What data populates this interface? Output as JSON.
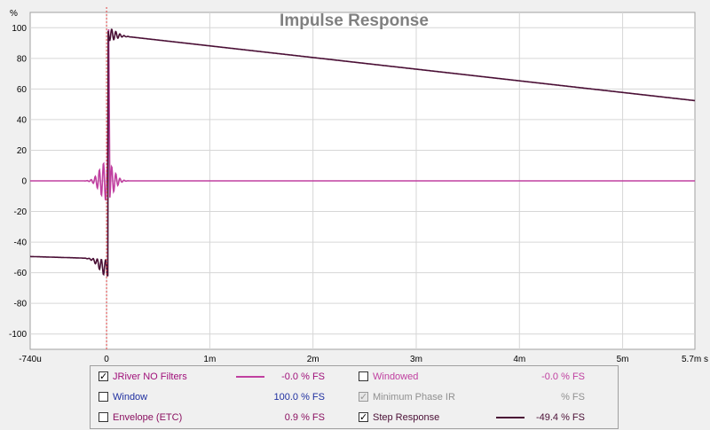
{
  "chart_data": {
    "type": "line",
    "title": "Impulse Response",
    "xlabel": "",
    "ylabel": "%",
    "xlim": [
      -0.74,
      5.7
    ],
    "ylim": [
      -110,
      110
    ],
    "x_unit_note": "ms",
    "x_ticks": [
      {
        "value": -0.74,
        "label": "-740u"
      },
      {
        "value": 0,
        "label": "0"
      },
      {
        "value": 1,
        "label": "1m"
      },
      {
        "value": 2,
        "label": "2m"
      },
      {
        "value": 3,
        "label": "3m"
      },
      {
        "value": 4,
        "label": "4m"
      },
      {
        "value": 5,
        "label": "5m"
      },
      {
        "value": 5.7,
        "label": "5.7m s"
      }
    ],
    "y_ticks": [
      100,
      80,
      60,
      40,
      20,
      0,
      -20,
      -40,
      -60,
      -80,
      -100
    ],
    "grid": true,
    "legend_position": "bottom",
    "cursor_marker_x": 0,
    "series": [
      {
        "name": "JRiver NO Filters",
        "color": "#c040a0",
        "kind": "impulse",
        "description_points": [
          [
            -0.74,
            0
          ],
          [
            -0.25,
            0
          ],
          [
            -0.04,
            14
          ],
          [
            0,
            -13
          ],
          [
            0.02,
            99
          ],
          [
            0.04,
            -12
          ],
          [
            0.2,
            0
          ],
          [
            5.7,
            0
          ]
        ]
      },
      {
        "name": "Step Response",
        "color": "#4a0f35",
        "kind": "step",
        "points": [
          [
            -0.74,
            -49.4
          ],
          [
            -0.3,
            -50
          ],
          [
            -0.1,
            -52
          ],
          [
            -0.03,
            -62
          ],
          [
            0,
            -50
          ],
          [
            0.02,
            100
          ],
          [
            0.05,
            96
          ],
          [
            0.1,
            100
          ],
          [
            0.25,
            94
          ],
          [
            1,
            87.6
          ],
          [
            2,
            79.2
          ],
          [
            3,
            71.3
          ],
          [
            4,
            64.1
          ],
          [
            5,
            57.1
          ],
          [
            5.7,
            52.4
          ]
        ]
      }
    ],
    "cursor_color": "#e04040"
  },
  "legend": {
    "items": [
      {
        "label": "JRiver NO Filters",
        "checked": true,
        "value": "-0.0 % FS",
        "label_color": "#a0107a",
        "value_color": "#a0107a",
        "swatch": "#c040a0"
      },
      {
        "label": "Window",
        "checked": false,
        "value": "100.0 % FS",
        "label_color": "#1f2fa0",
        "value_color": "#1f2fa0",
        "swatch": ""
      },
      {
        "label": "Envelope (ETC)",
        "checked": false,
        "value": "0.9 % FS",
        "label_color": "#8a1060",
        "value_color": "#8a1060",
        "swatch": ""
      },
      {
        "label": "Windowed",
        "checked": false,
        "value": "-0.0 % FS",
        "label_color": "#c040a0",
        "value_color": "#c040a0",
        "swatch": ""
      },
      {
        "label": "Minimum Phase IR",
        "checked": true,
        "disabled": true,
        "value": "% FS",
        "label_color": "#909090",
        "value_color": "#909090",
        "swatch": ""
      },
      {
        "label": "Step Response",
        "checked": true,
        "value": "-49.4 % FS",
        "label_color": "#4a0f35",
        "value_color": "#4a0f35",
        "swatch": "#4a0f35"
      }
    ]
  }
}
